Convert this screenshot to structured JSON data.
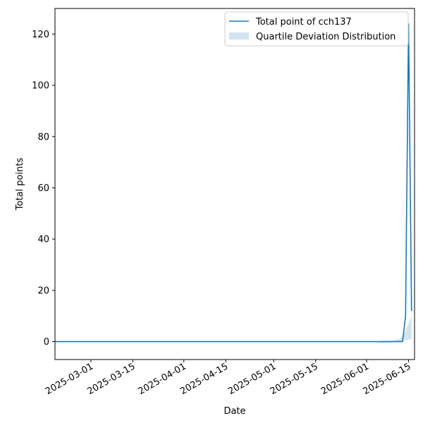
{
  "chart_data": {
    "type": "line",
    "title": "",
    "xlabel": "Date",
    "ylabel": "Total points",
    "x_ticks": [
      "2025-03-01",
      "2025-03-15",
      "2025-04-01",
      "2025-04-15",
      "2025-05-01",
      "2025-05-15",
      "2025-06-01",
      "2025-06-15"
    ],
    "y_ticks": [
      0,
      20,
      40,
      60,
      80,
      100,
      120
    ],
    "xlim": [
      "2025-02-17",
      "2025-06-17"
    ],
    "ylim": [
      -7,
      130
    ],
    "grid": false,
    "legend_position": "top-right",
    "series": [
      {
        "name": "Total point of cch137",
        "kind": "line",
        "color": "#1f77b4",
        "points": [
          [
            "2025-02-17",
            0
          ],
          [
            "2025-06-13",
            0
          ],
          [
            "2025-06-14",
            10
          ],
          [
            "2025-06-15",
            124
          ],
          [
            "2025-06-16",
            12
          ]
        ]
      },
      {
        "name": "Quartile Deviation Distribution",
        "kind": "band",
        "color": "#1f77b4",
        "opacity": 0.2,
        "points": [
          [
            "2025-02-17",
            0,
            0
          ],
          [
            "2025-06-03",
            0,
            0
          ],
          [
            "2025-06-06",
            -0.5,
            0.3
          ],
          [
            "2025-06-09",
            -0.3,
            0.3
          ],
          [
            "2025-06-12",
            0,
            1
          ],
          [
            "2025-06-14",
            0.5,
            4
          ],
          [
            "2025-06-16",
            1,
            10
          ]
        ]
      }
    ]
  }
}
